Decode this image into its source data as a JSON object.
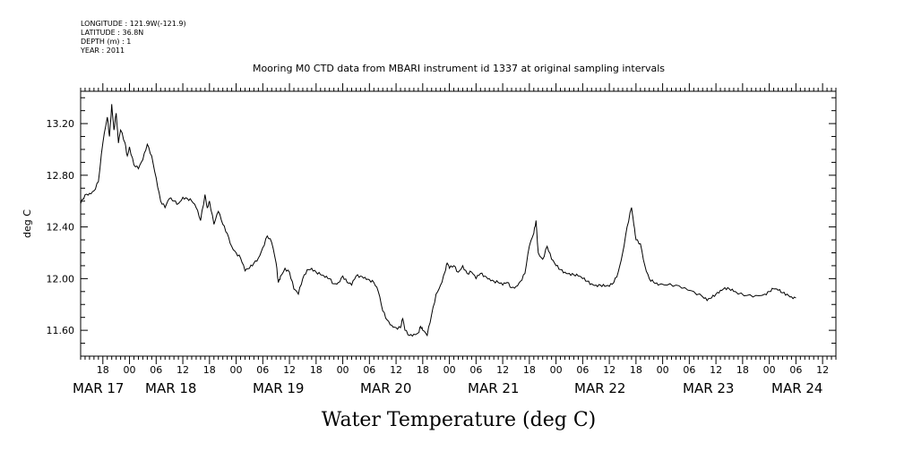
{
  "meta": {
    "longitude": "LONGITUDE : 121.9W(-121.9)",
    "latitude": "LATITUDE : 36.8N",
    "depth": "DEPTH (m) : 1",
    "year": "YEAR : 2011"
  },
  "chart_data": {
    "type": "line",
    "title": "Mooring M0 CTD data from MBARI instrument id 1337 at original sampling intervals",
    "xlabel": "Water Temperature (deg C)",
    "ylabel": "deg C",
    "ylim": [
      11.4,
      13.45
    ],
    "yticks": [
      11.6,
      12.0,
      12.4,
      12.8,
      13.2
    ],
    "ytick_labels": [
      "11.60",
      "12.00",
      "12.40",
      "12.80",
      "13.20"
    ],
    "xlim_hours": [
      0,
      170
    ],
    "hour_tick_labels": [
      "18",
      "00",
      "06",
      "12",
      "18",
      "00",
      "06",
      "12",
      "18",
      "00",
      "06",
      "12",
      "18",
      "00",
      "06",
      "12",
      "18",
      "00",
      "06",
      "12",
      "18",
      "00",
      "06",
      "12",
      "18",
      "00",
      "06",
      "12"
    ],
    "date_labels": [
      "MAR 17",
      "MAR 18",
      "MAR 19",
      "MAR 20",
      "MAR 21",
      "MAR 22",
      "MAR 23",
      "MAR 24"
    ],
    "grid": false,
    "series": [
      {
        "values": [
          [
            0,
            12.58
          ],
          [
            1,
            12.65
          ],
          [
            2,
            12.66
          ],
          [
            3,
            12.68
          ],
          [
            4,
            12.75
          ],
          [
            5,
            13.05
          ],
          [
            6,
            13.25
          ],
          [
            6.5,
            13.1
          ],
          [
            7,
            13.35
          ],
          [
            7.5,
            13.15
          ],
          [
            8,
            13.28
          ],
          [
            8.5,
            13.05
          ],
          [
            9,
            13.15
          ],
          [
            10,
            13.05
          ],
          [
            10.5,
            12.95
          ],
          [
            11,
            13.02
          ],
          [
            12,
            12.88
          ],
          [
            13,
            12.85
          ],
          [
            14,
            12.92
          ],
          [
            15,
            13.04
          ],
          [
            16,
            12.95
          ],
          [
            17,
            12.78
          ],
          [
            18,
            12.6
          ],
          [
            19,
            12.55
          ],
          [
            20,
            12.62
          ],
          [
            21,
            12.6
          ],
          [
            22,
            12.58
          ],
          [
            23,
            12.63
          ],
          [
            24,
            12.62
          ],
          [
            25,
            12.6
          ],
          [
            26,
            12.55
          ],
          [
            27,
            12.45
          ],
          [
            28,
            12.65
          ],
          [
            28.5,
            12.55
          ],
          [
            29,
            12.6
          ],
          [
            30,
            12.42
          ],
          [
            31,
            12.52
          ],
          [
            32,
            12.42
          ],
          [
            33,
            12.35
          ],
          [
            34,
            12.25
          ],
          [
            35,
            12.2
          ],
          [
            36,
            12.16
          ],
          [
            37,
            12.06
          ],
          [
            38,
            12.08
          ],
          [
            39,
            12.12
          ],
          [
            40,
            12.16
          ],
          [
            41,
            12.24
          ],
          [
            42,
            12.33
          ],
          [
            43,
            12.28
          ],
          [
            44,
            12.12
          ],
          [
            44.5,
            11.97
          ],
          [
            45,
            12.02
          ],
          [
            46,
            12.08
          ],
          [
            47,
            12.05
          ],
          [
            48,
            11.92
          ],
          [
            49,
            11.88
          ],
          [
            50,
            12.0
          ],
          [
            51,
            12.07
          ],
          [
            52,
            12.08
          ],
          [
            53,
            12.05
          ],
          [
            54,
            12.03
          ],
          [
            55,
            12.01
          ],
          [
            56,
            12.0
          ],
          [
            57,
            11.96
          ],
          [
            58,
            11.97
          ],
          [
            59,
            12.02
          ],
          [
            60,
            11.97
          ],
          [
            61,
            11.95
          ],
          [
            62,
            12.02
          ],
          [
            63,
            12.02
          ],
          [
            64,
            12.01
          ],
          [
            65,
            11.99
          ],
          [
            66,
            11.97
          ],
          [
            67,
            11.9
          ],
          [
            68,
            11.75
          ],
          [
            69,
            11.68
          ],
          [
            70,
            11.64
          ],
          [
            71,
            11.62
          ],
          [
            72,
            11.62
          ],
          [
            72.5,
            11.69
          ],
          [
            73,
            11.6
          ],
          [
            74,
            11.56
          ],
          [
            75,
            11.57
          ],
          [
            76,
            11.58
          ],
          [
            76.5,
            11.63
          ],
          [
            77,
            11.6
          ],
          [
            78,
            11.56
          ],
          [
            79,
            11.72
          ],
          [
            80,
            11.88
          ],
          [
            81,
            11.95
          ],
          [
            82,
            12.05
          ],
          [
            82.5,
            12.12
          ],
          [
            83,
            12.08
          ],
          [
            84,
            12.1
          ],
          [
            85,
            12.05
          ],
          [
            86,
            12.1
          ],
          [
            87,
            12.04
          ],
          [
            88,
            12.05
          ],
          [
            89,
            12.0
          ],
          [
            90,
            12.04
          ],
          [
            91,
            12.02
          ],
          [
            92,
            12.0
          ],
          [
            93,
            11.98
          ],
          [
            94,
            11.97
          ],
          [
            95,
            11.95
          ],
          [
            96,
            11.97
          ],
          [
            97,
            11.93
          ],
          [
            98,
            11.94
          ],
          [
            99,
            11.98
          ],
          [
            100,
            12.04
          ],
          [
            101,
            12.25
          ],
          [
            102,
            12.35
          ],
          [
            102.5,
            12.45
          ],
          [
            103,
            12.2
          ],
          [
            104,
            12.15
          ],
          [
            105,
            12.25
          ],
          [
            106,
            12.15
          ],
          [
            107,
            12.1
          ],
          [
            108,
            12.07
          ],
          [
            109,
            12.05
          ],
          [
            110,
            12.04
          ],
          [
            111,
            12.03
          ],
          [
            112,
            12.02
          ],
          [
            113,
            12.0
          ],
          [
            114,
            11.98
          ],
          [
            115,
            11.96
          ],
          [
            116,
            11.95
          ],
          [
            117,
            11.95
          ],
          [
            118,
            11.94
          ],
          [
            119,
            11.94
          ],
          [
            120,
            11.97
          ],
          [
            121,
            12.05
          ],
          [
            122,
            12.2
          ],
          [
            123,
            12.4
          ],
          [
            124,
            12.55
          ],
          [
            124.5,
            12.42
          ],
          [
            125,
            12.3
          ],
          [
            126,
            12.27
          ],
          [
            127,
            12.1
          ],
          [
            128,
            12.0
          ],
          [
            129,
            11.97
          ],
          [
            130,
            11.95
          ],
          [
            132,
            11.95
          ],
          [
            134,
            11.95
          ],
          [
            136,
            11.93
          ],
          [
            138,
            11.9
          ],
          [
            140,
            11.86
          ],
          [
            141,
            11.83
          ],
          [
            142,
            11.85
          ],
          [
            143,
            11.88
          ],
          [
            144,
            11.91
          ],
          [
            145,
            11.93
          ],
          [
            146,
            11.92
          ],
          [
            147,
            11.9
          ],
          [
            148,
            11.88
          ],
          [
            150,
            11.87
          ],
          [
            152,
            11.87
          ],
          [
            154,
            11.88
          ],
          [
            155,
            11.9
          ],
          [
            156,
            11.92
          ],
          [
            157,
            11.91
          ],
          [
            158,
            11.89
          ],
          [
            159,
            11.88
          ],
          [
            160,
            11.86
          ],
          [
            161,
            11.85
          ]
        ]
      }
    ]
  }
}
